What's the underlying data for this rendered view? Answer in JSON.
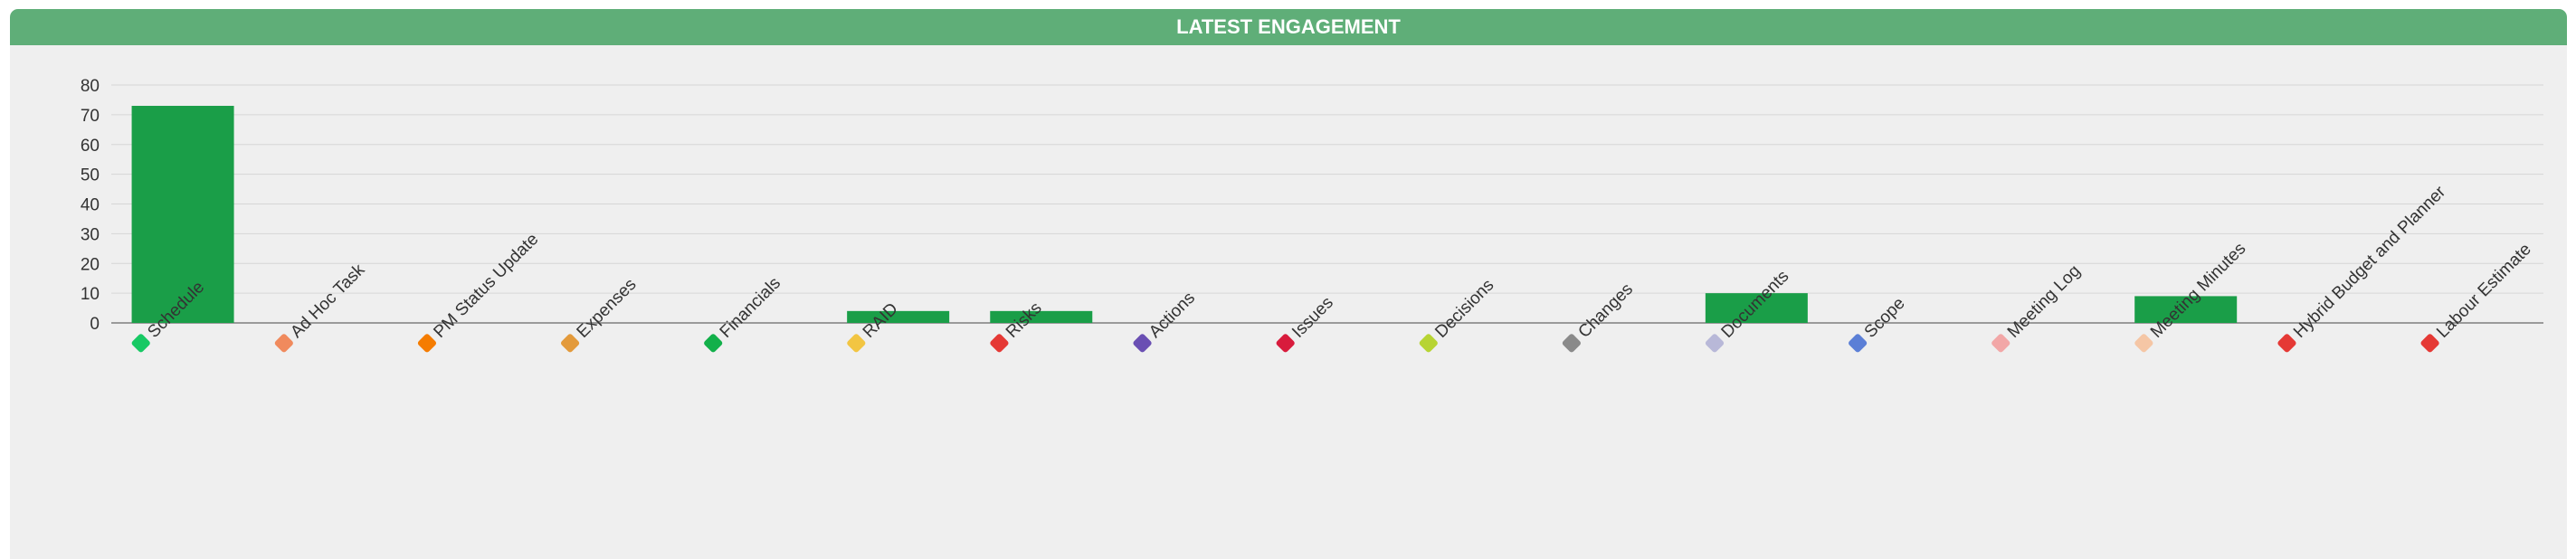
{
  "header": {
    "title": "LATEST ENGAGEMENT"
  },
  "colors": {
    "header_bg": "#5fae78",
    "bar": "#1a9e48",
    "panel_bg": "#efefef",
    "grid": "#d6d6d6"
  },
  "chart_data": {
    "type": "bar",
    "title": "LATEST ENGAGEMENT",
    "xlabel": "",
    "ylabel": "",
    "ylim": [
      0,
      80
    ],
    "yticks": [
      0,
      10,
      20,
      30,
      40,
      50,
      60,
      70,
      80
    ],
    "grid": true,
    "categories": [
      "Schedule",
      "Ad Hoc Task",
      "PM Status Update",
      "Expenses",
      "Financials",
      "RAID",
      "Risks",
      "Actions",
      "Issues",
      "Decisions",
      "Changes",
      "Documents",
      "Scope",
      "Meeting Log",
      "Meeting Minutes",
      "Hybrid Budget and Planner",
      "Labour Estimate"
    ],
    "category_icons": [
      "check-green-icon",
      "pencil-ruler-icon",
      "pencil-icon",
      "money-bag-icon",
      "dollar-arrows-icon",
      "sticky-note-icon",
      "red-pin-icon",
      "l-square-icon",
      "red-tag-icon",
      "yellow-green-split-icon",
      "scissors-icon",
      "document-icon",
      "calendar-icon",
      "notebook-icon",
      "handshake-icon",
      "red-briefcase-icon",
      "red-briefcase-icon"
    ],
    "values": [
      73,
      0,
      0,
      0,
      0,
      4,
      4,
      0,
      0,
      0,
      0,
      10,
      0,
      0,
      9,
      0,
      0
    ]
  }
}
